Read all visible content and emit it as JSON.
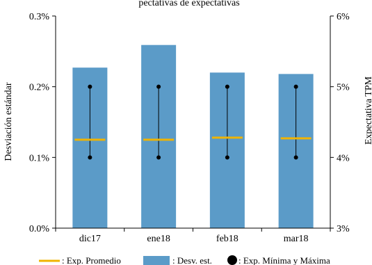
{
  "chart_data": {
    "type": "bar",
    "title": "pectativas de expectativas",
    "categories": [
      "dic17",
      "ene18",
      "feb18",
      "mar18"
    ],
    "series": [
      {
        "name": "Desv. est.",
        "axis": "left",
        "values": [
          0.227,
          0.259,
          0.22,
          0.218
        ]
      },
      {
        "name": "Exp. Promedio",
        "axis": "right",
        "values": [
          4.25,
          4.25,
          4.28,
          4.27
        ]
      },
      {
        "name": "Exp. Mínima",
        "axis": "right",
        "values": [
          4.0,
          4.0,
          4.0,
          4.0
        ]
      },
      {
        "name": "Exp. Máxima",
        "axis": "right",
        "values": [
          5.0,
          5.0,
          5.0,
          5.0
        ]
      }
    ],
    "ylabel": "Desviación estándar",
    "ylabel_right": "Expectativa TPM",
    "ylim": [
      0.0,
      0.3
    ],
    "ylim_right": [
      3,
      6
    ],
    "yticks": [
      "0.0%",
      "0.1%",
      "0.2%",
      "0.3%"
    ],
    "yticks_right": [
      "3%",
      "4%",
      "5%",
      "6%"
    ],
    "legend": {
      "position": "bottom",
      "entries": [
        ": Exp. Promedio",
        ": Desv. est.",
        ": Exp. Mínima y Máxima"
      ]
    },
    "colors": {
      "bar": "#5b9bc8",
      "mean": "#f0b400",
      "range": "#000000"
    },
    "grid": false
  }
}
